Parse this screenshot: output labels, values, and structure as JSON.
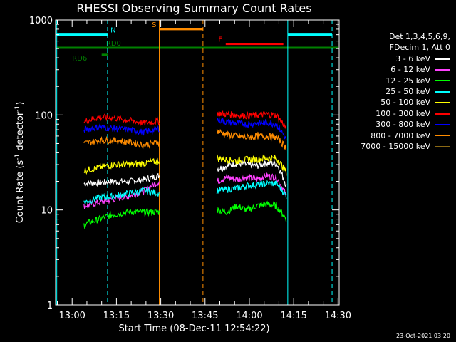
{
  "chart_data": {
    "type": "line",
    "title": "RHESSI Observing Summary Count Rates",
    "xlabel": "Start Time (08-Dec-11 12:54:22)",
    "ylabel_main": "Count Rate (s",
    "ylabel_sup": "-1",
    "ylabel_tail": " detector",
    "ylabel_sup2": "-1",
    "ylabel_close": ")",
    "y_scale": "log",
    "ylim": [
      1,
      1000
    ],
    "xlim_minutes": [
      -5.6,
      90.4
    ],
    "x_ticks": [
      {
        "value": 0,
        "label": "13:00"
      },
      {
        "value": 15,
        "label": "13:15"
      },
      {
        "value": 30,
        "label": "13:30"
      },
      {
        "value": 45,
        "label": "13:45"
      },
      {
        "value": 60,
        "label": "14:00"
      },
      {
        "value": 75,
        "label": "14:15"
      },
      {
        "value": 90,
        "label": "14:30"
      }
    ],
    "y_ticks": [
      {
        "value": 1,
        "label": "1"
      },
      {
        "value": 10,
        "label": "10"
      },
      {
        "value": 100,
        "label": "100"
      },
      {
        "value": 1000,
        "label": "1000"
      }
    ],
    "segments": [
      [
        4,
        29.5
      ],
      [
        49,
        72.5
      ]
    ],
    "series": [
      {
        "name": "3 - 6 keV",
        "color": "#ffffff",
        "seg1": [
          19,
          19.5,
          20,
          20,
          21,
          23
        ],
        "seg2": [
          27,
          29,
          31,
          30,
          29,
          31,
          31,
          18
        ]
      },
      {
        "name": "6 - 12 keV",
        "color": "#ff40ff",
        "seg1": [
          11,
          12,
          13,
          14,
          16,
          20
        ],
        "seg2": [
          20,
          22,
          21,
          22,
          21,
          23,
          22,
          14
        ]
      },
      {
        "name": "12 - 25 keV",
        "color": "#00ff00",
        "seg1": [
          7,
          8,
          9,
          9.5,
          9.5,
          9.5
        ],
        "seg2": [
          10,
          9.5,
          11,
          10,
          11,
          11.5,
          11,
          8
        ]
      },
      {
        "name": "25 - 50 keV",
        "color": "#00ffff",
        "seg1": [
          12,
          13.5,
          14,
          15,
          16,
          15
        ],
        "seg2": [
          16,
          16.5,
          17,
          18,
          18.5,
          19,
          19,
          14
        ]
      },
      {
        "name": "50 - 100 keV",
        "color": "#ffff00",
        "seg1": [
          26,
          28,
          30,
          30,
          31,
          33
        ],
        "seg2": [
          35,
          34,
          33,
          34,
          34,
          35,
          35,
          25
        ]
      },
      {
        "name": "100 - 300 keV",
        "color": "#ff0000",
        "seg1": [
          85,
          95,
          93,
          88,
          82,
          87
        ],
        "seg2": [
          105,
          102,
          100,
          98,
          100,
          102,
          100,
          72
        ]
      },
      {
        "name": "300 - 800 keV",
        "color": "#0000ff",
        "seg1": [
          70,
          75,
          72,
          70,
          66,
          72
        ],
        "seg2": [
          90,
          84,
          82,
          80,
          82,
          83,
          80,
          55
        ]
      },
      {
        "name": "800 - 7000 keV",
        "color": "#ff8c00",
        "seg1": [
          50,
          54,
          54,
          52,
          48,
          52
        ],
        "seg2": [
          68,
          62,
          60,
          58,
          60,
          60,
          58,
          45
        ]
      },
      {
        "name": "7000 - 15000 keV",
        "color": "#8b6914",
        "seg1": [],
        "seg2": []
      }
    ],
    "flag_bars": [
      {
        "label": "N",
        "color": "#00ffff",
        "ranges": [
          [
            -5.6,
            12
          ]
        ],
        "label_at": 13,
        "value": 700
      },
      {
        "label": "",
        "color": "#00ffff",
        "ranges": [
          [
            73,
            88
          ]
        ],
        "value": 700
      },
      {
        "label": "S",
        "color": "#ff8c00",
        "ranges": [
          [
            29.5,
            44.3
          ]
        ],
        "label_at": 27,
        "value": 800
      },
      {
        "label": "F",
        "color": "#ff0000",
        "ranges": [
          [
            52,
            71.5
          ]
        ],
        "label_at": 49.5,
        "value": 560
      },
      {
        "label": "RD0",
        "color": "#008000",
        "ranges": [
          [
            -5.6,
            90
          ]
        ],
        "label_at": 11.5,
        "value": 510
      },
      {
        "label": "RD6",
        "color": "#008000",
        "ranges": [
          [
            10,
            12
          ]
        ],
        "label_at": 0,
        "value": 430
      }
    ],
    "vertical_markers": [
      {
        "minute": -5.2,
        "color": "#00ffff",
        "style": "solid"
      },
      {
        "minute": 12,
        "color": "#00ffff",
        "style": "dashed"
      },
      {
        "minute": 73,
        "color": "#00ffff",
        "style": "solid"
      },
      {
        "minute": 88,
        "color": "#00ffff",
        "style": "dashed"
      },
      {
        "minute": 29.5,
        "color": "#ff8c00",
        "style": "solid"
      },
      {
        "minute": 44.3,
        "color": "#ff8c00",
        "style": "dashed"
      }
    ],
    "legend": {
      "header1": "Det 1,3,4,5,6,9,",
      "header2": "FDecim 1, Att 0"
    }
  },
  "timestamp": "23-Oct-2021 03:20"
}
